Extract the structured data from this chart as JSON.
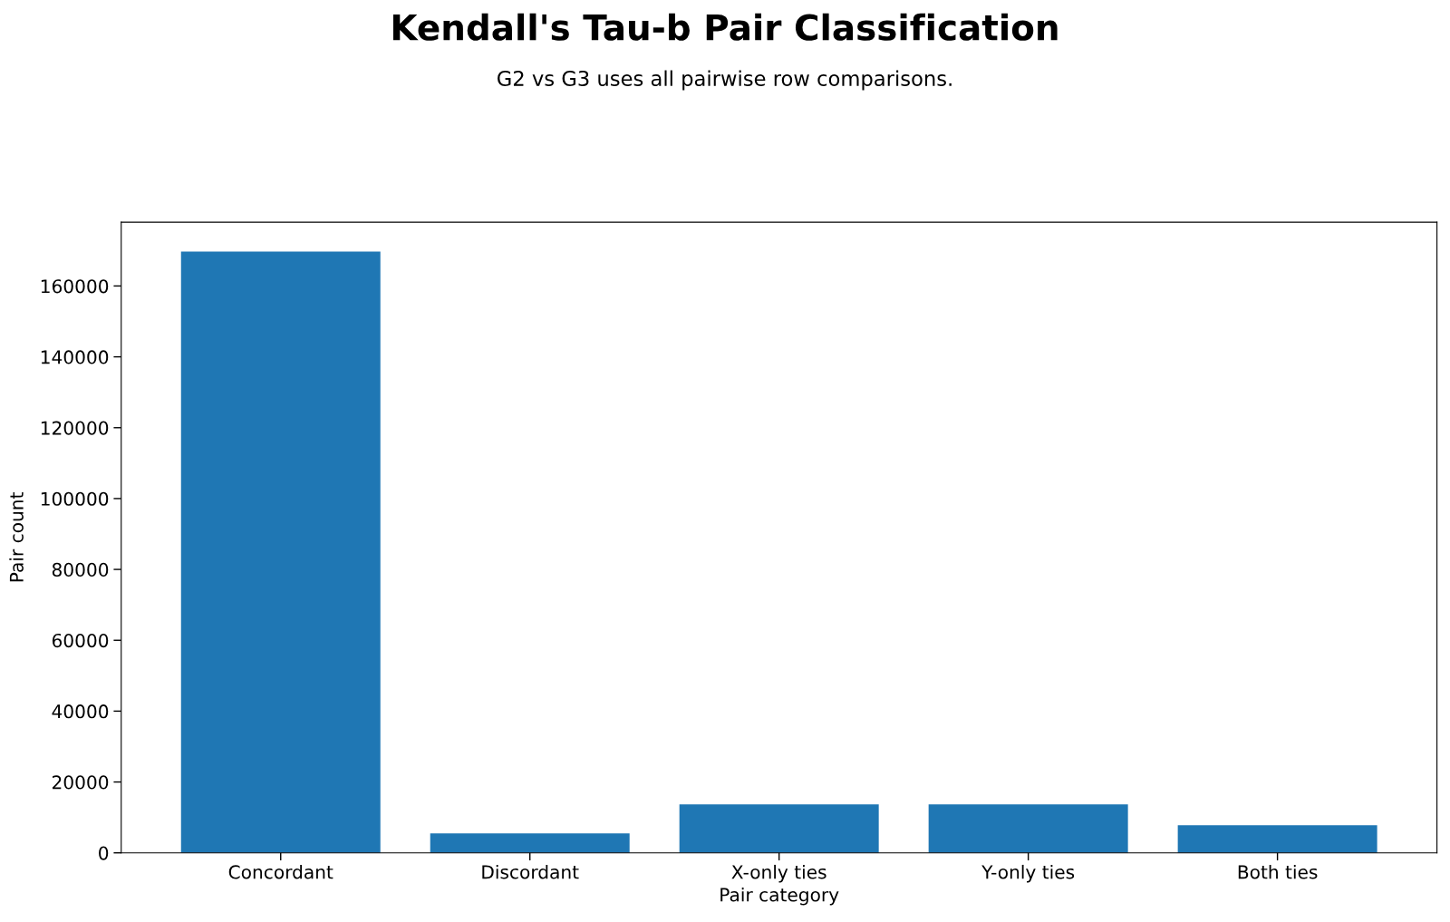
{
  "chart_data": {
    "type": "bar",
    "title": "Kendall's Tau-b Pair Classification",
    "subtitle": "G2 vs G3 uses all pairwise row comparisons.",
    "xlabel": "Pair category",
    "ylabel": "Pair count",
    "categories": [
      "Concordant",
      "Discordant",
      "X-only ties",
      "Y-only ties",
      "Both ties"
    ],
    "values": [
      169700,
      5500,
      13700,
      13700,
      7800
    ],
    "color": "#1f77b4",
    "ylim": [
      0,
      178000
    ],
    "yticks": [
      0,
      20000,
      40000,
      60000,
      80000,
      100000,
      120000,
      140000,
      160000
    ],
    "grid": false
  }
}
